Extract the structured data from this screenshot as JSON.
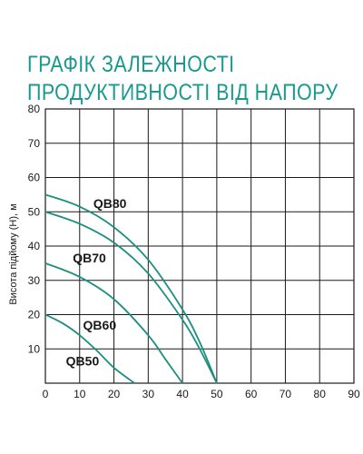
{
  "header": {
    "title_line1": "ГРАФІК ЗАЛЕЖНОСТІ",
    "title_line2": "ПРОДУКТИВНОСТІ ВІД НАПОРУ"
  },
  "chart_data": {
    "type": "line",
    "ylabel": "Висота підйому (Н), м",
    "xlabel": "",
    "xlim": [
      0,
      90
    ],
    "ylim": [
      0,
      80
    ],
    "x_ticks": [
      "0",
      "10",
      "20",
      "30",
      "40",
      "50",
      "60",
      "70",
      "80",
      "90"
    ],
    "y_ticks": [
      "10",
      "20",
      "30",
      "40",
      "50",
      "60",
      "70",
      "80"
    ],
    "grid": true,
    "line_color": "#1a8f80",
    "series": [
      {
        "name": "QB80",
        "x": [
          0,
          10,
          20,
          30,
          40,
          45,
          50
        ],
        "y": [
          55,
          51.5,
          45.5,
          36,
          21.5,
          12,
          0
        ]
      },
      {
        "name": "QB70",
        "x": [
          0,
          10,
          20,
          30,
          40,
          45,
          50
        ],
        "y": [
          50,
          46.5,
          41,
          32,
          18.5,
          10,
          0
        ]
      },
      {
        "name": "QB60",
        "x": [
          0,
          10,
          20,
          30,
          35,
          40
        ],
        "y": [
          35,
          31,
          24.5,
          14,
          7,
          0
        ]
      },
      {
        "name": "QB50",
        "x": [
          0,
          5,
          10,
          15,
          20,
          26
        ],
        "y": [
          20,
          17.5,
          14,
          9.5,
          4.5,
          0
        ]
      }
    ],
    "annotations": [
      {
        "text": "QB80",
        "x": 14,
        "y": 52.5
      },
      {
        "text": "QB70",
        "x": 8,
        "y": 36.5
      },
      {
        "text": "QB60",
        "x": 11,
        "y": 17
      },
      {
        "text": "QB50",
        "x": 6,
        "y": 6.5
      }
    ]
  }
}
